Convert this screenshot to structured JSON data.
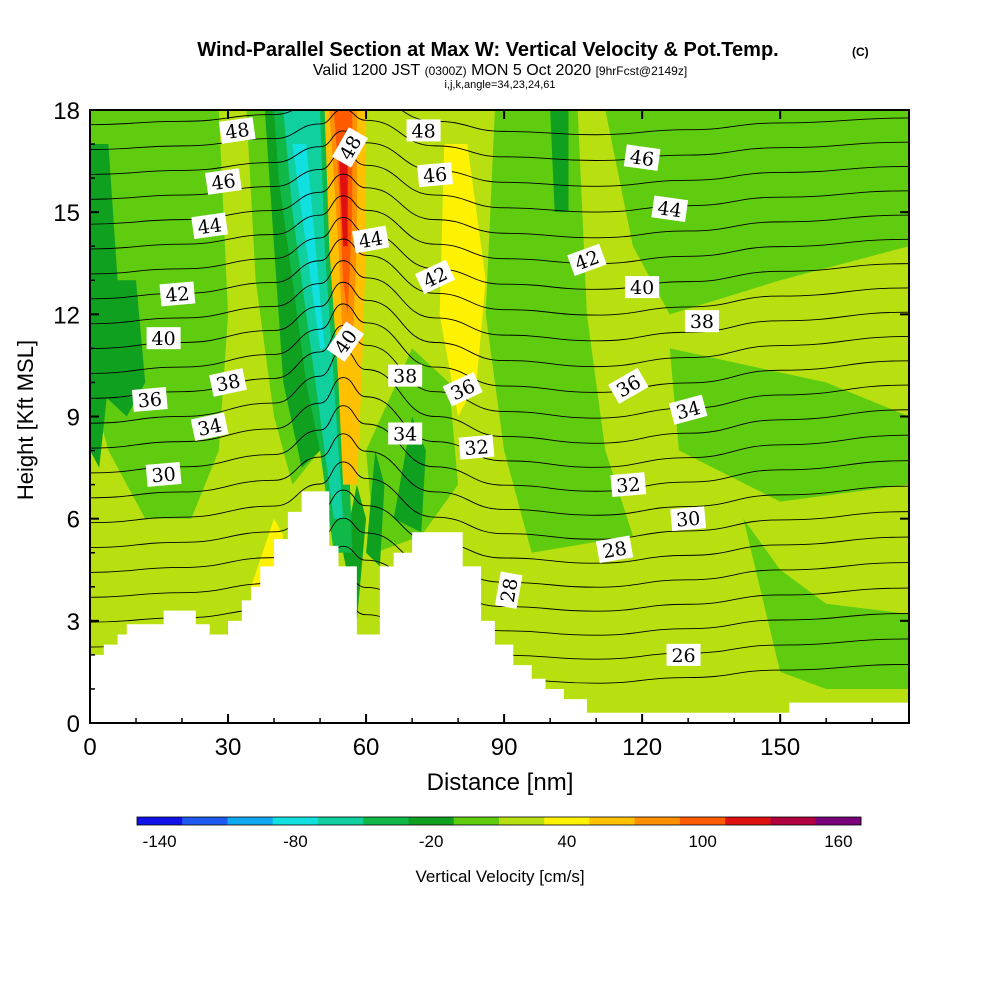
{
  "chart_data": {
    "type": "heatmap",
    "title": "Wind-Parallel Section at Max W: Vertical Velocity & Pot.Temp.",
    "title_mark": "(C)",
    "subtitle": {
      "valid": "Valid 1200 JST",
      "utc": "(0300Z)",
      "date": "MON 5 Oct 2020",
      "fcst": "[9hrFcst@2149z]"
    },
    "subtitle2": "i,j,k,angle=34,23,24,61",
    "xlabel": "Distance [nm]",
    "ylabel": "Height [Kft MSL]",
    "xlim": [
      0,
      178
    ],
    "ylim": [
      0,
      18
    ],
    "x_ticks": [
      0,
      30,
      60,
      90,
      120,
      150
    ],
    "y_ticks": [
      0,
      3,
      6,
      9,
      12,
      15,
      18
    ],
    "colorbar": {
      "label": "Vertical Velocity [cm/s]",
      "tick_labels": [
        "-140",
        "-80",
        "-20",
        "40",
        "100",
        "160"
      ],
      "tick_values": [
        -140,
        -80,
        -20,
        40,
        100,
        160
      ],
      "min": -150,
      "max": 170,
      "step": 20,
      "colors": [
        "#1010e8",
        "#1e5af0",
        "#10a8f0",
        "#10e0e0",
        "#10d0a0",
        "#10b848",
        "#10a020",
        "#60cc10",
        "#b8e010",
        "#fff200",
        "#ffc000",
        "#ff9000",
        "#ff5a00",
        "#e01010",
        "#b00040",
        "#780078"
      ]
    },
    "background_color": "#b8e010",
    "terrain": [
      [
        0,
        2.0
      ],
      [
        3,
        2.3
      ],
      [
        6,
        2.6
      ],
      [
        8,
        2.9
      ],
      [
        16,
        3.3
      ],
      [
        23,
        2.9
      ],
      [
        26,
        2.6
      ],
      [
        30,
        3.0
      ],
      [
        33,
        3.6
      ],
      [
        35,
        4.0
      ],
      [
        37,
        4.6
      ],
      [
        40,
        5.4
      ],
      [
        43,
        6.2
      ],
      [
        46,
        6.8
      ],
      [
        51,
        6.8
      ],
      [
        52,
        5.2
      ],
      [
        54,
        4.6
      ],
      [
        58,
        2.6
      ],
      [
        61,
        2.6
      ],
      [
        63,
        4.6
      ],
      [
        66,
        5.0
      ],
      [
        70,
        5.6
      ],
      [
        77,
        5.6
      ],
      [
        81,
        4.6
      ],
      [
        85,
        3.0
      ],
      [
        88,
        2.3
      ],
      [
        92,
        1.7
      ],
      [
        96,
        1.3
      ],
      [
        99,
        1.0
      ],
      [
        103,
        0.7
      ],
      [
        108,
        0.3
      ],
      [
        150,
        0.3
      ],
      [
        152,
        0.6
      ],
      [
        178,
        0.6
      ]
    ],
    "theta_levels": [
      26,
      27,
      28,
      29,
      30,
      31,
      32,
      33,
      34,
      35,
      36,
      37,
      38,
      39,
      40,
      41,
      42,
      43,
      44,
      45,
      46,
      47,
      48,
      49
    ],
    "contour_labels": [
      {
        "text": "48",
        "x": 32,
        "y": 17.4,
        "rotation": -8
      },
      {
        "text": "46",
        "x": 29,
        "y": 15.9,
        "rotation": -8
      },
      {
        "text": "44",
        "x": 26,
        "y": 14.6,
        "rotation": -8
      },
      {
        "text": "42",
        "x": 19,
        "y": 12.6,
        "rotation": -5
      },
      {
        "text": "40",
        "x": 16,
        "y": 11.3,
        "rotation": 0
      },
      {
        "text": "38",
        "x": 30,
        "y": 10.0,
        "rotation": -12
      },
      {
        "text": "36",
        "x": 13,
        "y": 9.5,
        "rotation": -5
      },
      {
        "text": "34",
        "x": 26,
        "y": 8.7,
        "rotation": -12
      },
      {
        "text": "30",
        "x": 16,
        "y": 7.3,
        "rotation": -5
      },
      {
        "text": "48",
        "x": 56.5,
        "y": 16.9,
        "rotation": -60
      },
      {
        "text": "44",
        "x": 61,
        "y": 14.2,
        "rotation": -10
      },
      {
        "text": "40",
        "x": 55.5,
        "y": 11.2,
        "rotation": -55
      },
      {
        "text": "38",
        "x": 68.5,
        "y": 10.2,
        "rotation": 0
      },
      {
        "text": "34",
        "x": 68.5,
        "y": 8.5,
        "rotation": 0
      },
      {
        "text": "48",
        "x": 72.5,
        "y": 17.4,
        "rotation": 0
      },
      {
        "text": "46",
        "x": 75,
        "y": 16.1,
        "rotation": -5
      },
      {
        "text": "42",
        "x": 75,
        "y": 13.1,
        "rotation": -25
      },
      {
        "text": "36",
        "x": 81,
        "y": 9.8,
        "rotation": -25
      },
      {
        "text": "32",
        "x": 84,
        "y": 8.1,
        "rotation": -5
      },
      {
        "text": "28",
        "x": 91,
        "y": 3.9,
        "rotation": -80
      },
      {
        "text": "46",
        "x": 120,
        "y": 16.6,
        "rotation": 8
      },
      {
        "text": "44",
        "x": 126,
        "y": 15.1,
        "rotation": 8
      },
      {
        "text": "42",
        "x": 108,
        "y": 13.6,
        "rotation": -20
      },
      {
        "text": "40",
        "x": 120,
        "y": 12.8,
        "rotation": 0
      },
      {
        "text": "38",
        "x": 133,
        "y": 11.8,
        "rotation": 0
      },
      {
        "text": "36",
        "x": 117,
        "y": 9.9,
        "rotation": -30
      },
      {
        "text": "34",
        "x": 130,
        "y": 9.2,
        "rotation": -15
      },
      {
        "text": "32",
        "x": 117,
        "y": 7.0,
        "rotation": -5
      },
      {
        "text": "30",
        "x": 130,
        "y": 6.0,
        "rotation": -5
      },
      {
        "text": "28",
        "x": 114,
        "y": 5.1,
        "rotation": -10
      },
      {
        "text": "26",
        "x": 129,
        "y": 2.0,
        "rotation": 0
      }
    ]
  }
}
